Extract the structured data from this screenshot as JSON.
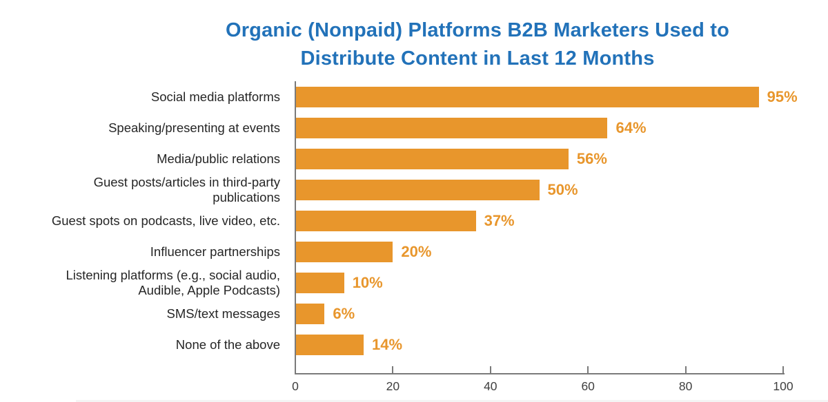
{
  "title": {
    "line1": "Organic (Nonpaid) Platforms B2B Marketers Used to",
    "line2": "Distribute Content in Last 12 Months"
  },
  "chart_data": {
    "type": "bar",
    "orientation": "horizontal",
    "title": "Organic (Nonpaid) Platforms B2B Marketers Used to Distribute Content in Last 12 Months",
    "categories": [
      "Social media platforms",
      "Speaking/presenting at events",
      "Media/public relations",
      "Guest posts/articles in third-party publications",
      "Guest spots on podcasts, live video, etc.",
      "Influencer partnerships",
      "Listening platforms (e.g., social audio,\nAudible, Apple Podcasts)",
      "SMS/text messages",
      "None of the above"
    ],
    "values": [
      95,
      64,
      56,
      50,
      37,
      20,
      10,
      6,
      14
    ],
    "value_labels": [
      "95%",
      "64%",
      "56%",
      "50%",
      "37%",
      "20%",
      "10%",
      "6%",
      "14%"
    ],
    "xlabel": "",
    "ylabel": "",
    "xlim": [
      0,
      100
    ],
    "x_ticks": [
      0,
      20,
      40,
      60,
      80,
      100
    ],
    "grid": false,
    "legend": false,
    "colors": {
      "bar": "#E8962C",
      "value_label": "#E8962C",
      "title": "#2272B9",
      "category_label": "#262626",
      "axis": "#7A7A7A",
      "tick_label": "#3F3F3F"
    }
  }
}
